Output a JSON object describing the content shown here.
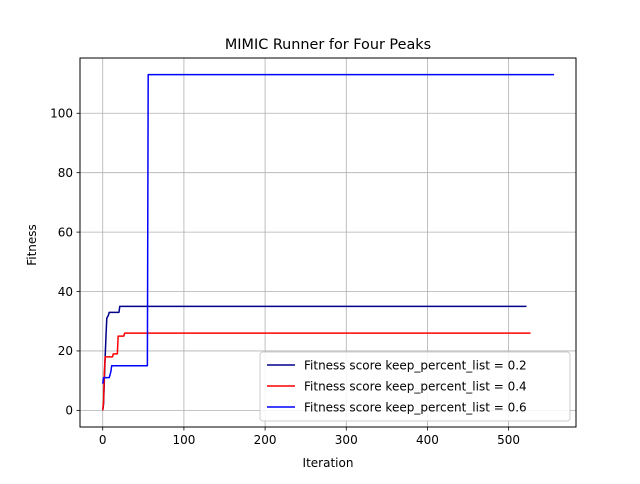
{
  "chart_data": {
    "type": "line",
    "title": "MIMIC Runner for Four Peaks",
    "xlabel": "Iteration",
    "ylabel": "Fitness",
    "xlim": [
      -28,
      583
    ],
    "ylim": [
      -5.6,
      118.6
    ],
    "xticks": [
      0,
      100,
      200,
      300,
      400,
      500
    ],
    "yticks": [
      0,
      20,
      40,
      60,
      80,
      100
    ],
    "grid": true,
    "legend_position": "lower-right",
    "series": [
      {
        "name": "Fitness score keep_percent_list = 0.2",
        "color": "#00008b",
        "points": [
          [
            0,
            0
          ],
          [
            1,
            2
          ],
          [
            2,
            10
          ],
          [
            3,
            18
          ],
          [
            4,
            25
          ],
          [
            5,
            31
          ],
          [
            7,
            32
          ],
          [
            8,
            33
          ],
          [
            20,
            33
          ],
          [
            21,
            35
          ],
          [
            522,
            35
          ]
        ]
      },
      {
        "name": "Fitness score keep_percent_list = 0.4",
        "color": "#ff0000",
        "points": [
          [
            0,
            0
          ],
          [
            1,
            3
          ],
          [
            2,
            13
          ],
          [
            3,
            18
          ],
          [
            12,
            18
          ],
          [
            13,
            19
          ],
          [
            18,
            19
          ],
          [
            19,
            25
          ],
          [
            26,
            25
          ],
          [
            27,
            26
          ],
          [
            527,
            26
          ]
        ]
      },
      {
        "name": "Fitness score keep_percent_list = 0.6",
        "color": "#0000ff",
        "points": [
          [
            0,
            9
          ],
          [
            1,
            11
          ],
          [
            8,
            11
          ],
          [
            9,
            12
          ],
          [
            10,
            13
          ],
          [
            11,
            15
          ],
          [
            55,
            15
          ],
          [
            56,
            113
          ],
          [
            556,
            113
          ]
        ]
      }
    ]
  }
}
